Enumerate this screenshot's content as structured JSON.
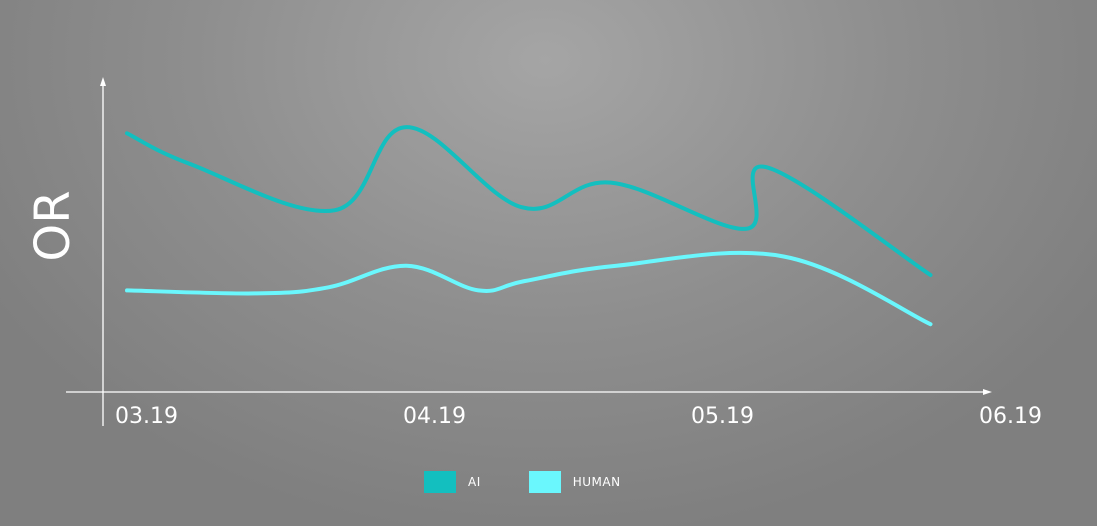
{
  "chart_data": {
    "type": "line",
    "ylabel": "OR",
    "x_ticks": [
      "03.19",
      "04.19",
      "05.19",
      "06.19"
    ],
    "series": [
      {
        "name": "AI",
        "color": "#13bfbf",
        "x": [
          0.0,
          0.22,
          0.72,
          0.97,
          1.37,
          1.68,
          2.15,
          2.22,
          2.79
        ],
        "y": [
          0.84,
          0.74,
          0.59,
          0.86,
          0.6,
          0.68,
          0.53,
          0.73,
          0.38
        ]
      },
      {
        "name": "HUMAN",
        "color": "#6af7fd",
        "x": [
          0.0,
          0.45,
          0.7,
          0.97,
          1.22,
          1.38,
          1.7,
          2.28,
          2.79
        ],
        "y": [
          0.33,
          0.32,
          0.34,
          0.41,
          0.33,
          0.36,
          0.41,
          0.44,
          0.22
        ]
      }
    ],
    "xlim": [
      0,
      2.9
    ],
    "ylim": [
      0,
      1
    ],
    "grid": false,
    "legend_position": "bottom"
  }
}
